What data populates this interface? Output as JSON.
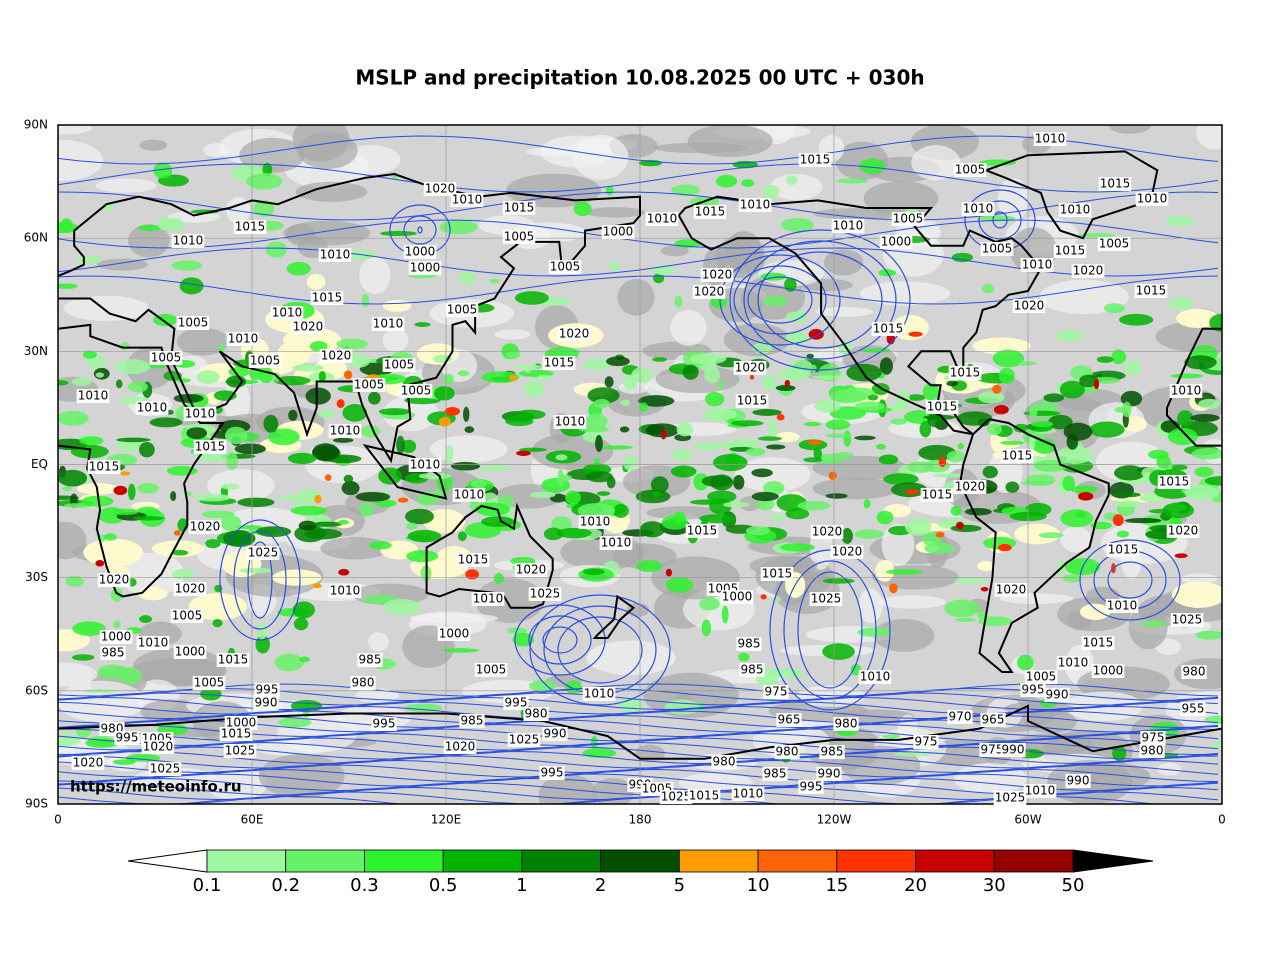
{
  "title": "MSLP and precipitation 10.08.2025 00 UTC + 030h",
  "lat_labels": [
    "90N",
    "60N",
    "30N",
    "EQ",
    "30S",
    "60S",
    "90S"
  ],
  "lon_labels": [
    "0",
    "60E",
    "120E",
    "180",
    "120W",
    "60W",
    "0"
  ],
  "credit": "https://meteoinfo.ru",
  "colorbar": {
    "levels": [
      0.1,
      0.2,
      0.3,
      0.5,
      1,
      2,
      5,
      10,
      15,
      20,
      30,
      50
    ],
    "colors": [
      "#9ef79e",
      "#66f266",
      "#2ef22e",
      "#00b400",
      "#008200",
      "#004f00",
      "#ff9d00",
      "#ff6400",
      "#ff3200",
      "#c80000",
      "#960000"
    ],
    "under_color": "#ffffff",
    "over_color": "#000000"
  },
  "isobar_labels": [
    "1010",
    "1015",
    "1005",
    "1015",
    "1020",
    "1010",
    "1015",
    "1015",
    "1010",
    "1010",
    "1015",
    "1010",
    "1010",
    "1005",
    "1010",
    "1010",
    "1010",
    "1005",
    "1000",
    "1000",
    "1005",
    "1005",
    "1010",
    "1000",
    "1000",
    "1005",
    "1015",
    "1010",
    "1020",
    "1020",
    "1020",
    "1015",
    "1015",
    "1020",
    "1005",
    "1010",
    "1005",
    "1010",
    "1020",
    "1020",
    "1015",
    "1010",
    "1020",
    "1005",
    "1005",
    "1015",
    "1020",
    "1005",
    "1005",
    "1005",
    "1015",
    "1010",
    "1010",
    "1010",
    "1015",
    "1015",
    "1010",
    "1010",
    "1010",
    "1015",
    "1015",
    "1015",
    "1010",
    "1010",
    "1015",
    "1020",
    "1015",
    "1010",
    "1010",
    "1015",
    "1020",
    "1020",
    "1020",
    "1020",
    "1025",
    "1015",
    "1020",
    "1020",
    "1015",
    "1020",
    "1010",
    "1025",
    "1015",
    "1005",
    "1020",
    "1025",
    "1000",
    "1010",
    "1010",
    "1005",
    "1025",
    "1000",
    "1010",
    "1000",
    "985",
    "1015",
    "985",
    "1000",
    "1015",
    "985",
    "1010",
    "1000",
    "1005",
    "985",
    "1010",
    "1005",
    "980",
    "1005",
    "980",
    "995",
    "1010",
    "975",
    "995",
    "990",
    "990",
    "995",
    "955",
    "965",
    "980",
    "995",
    "970",
    "1000",
    "980",
    "980",
    "965",
    "985",
    "1015",
    "990",
    "975",
    "975",
    "995",
    "1005",
    "1025",
    "1020",
    "1025",
    "1020",
    "975",
    "990",
    "980",
    "985",
    "980",
    "1020",
    "980",
    "1025",
    "995",
    "985",
    "990",
    "990",
    "995",
    "990",
    "1005",
    "1010",
    "1010",
    "1025",
    "1015",
    "1025"
  ]
}
